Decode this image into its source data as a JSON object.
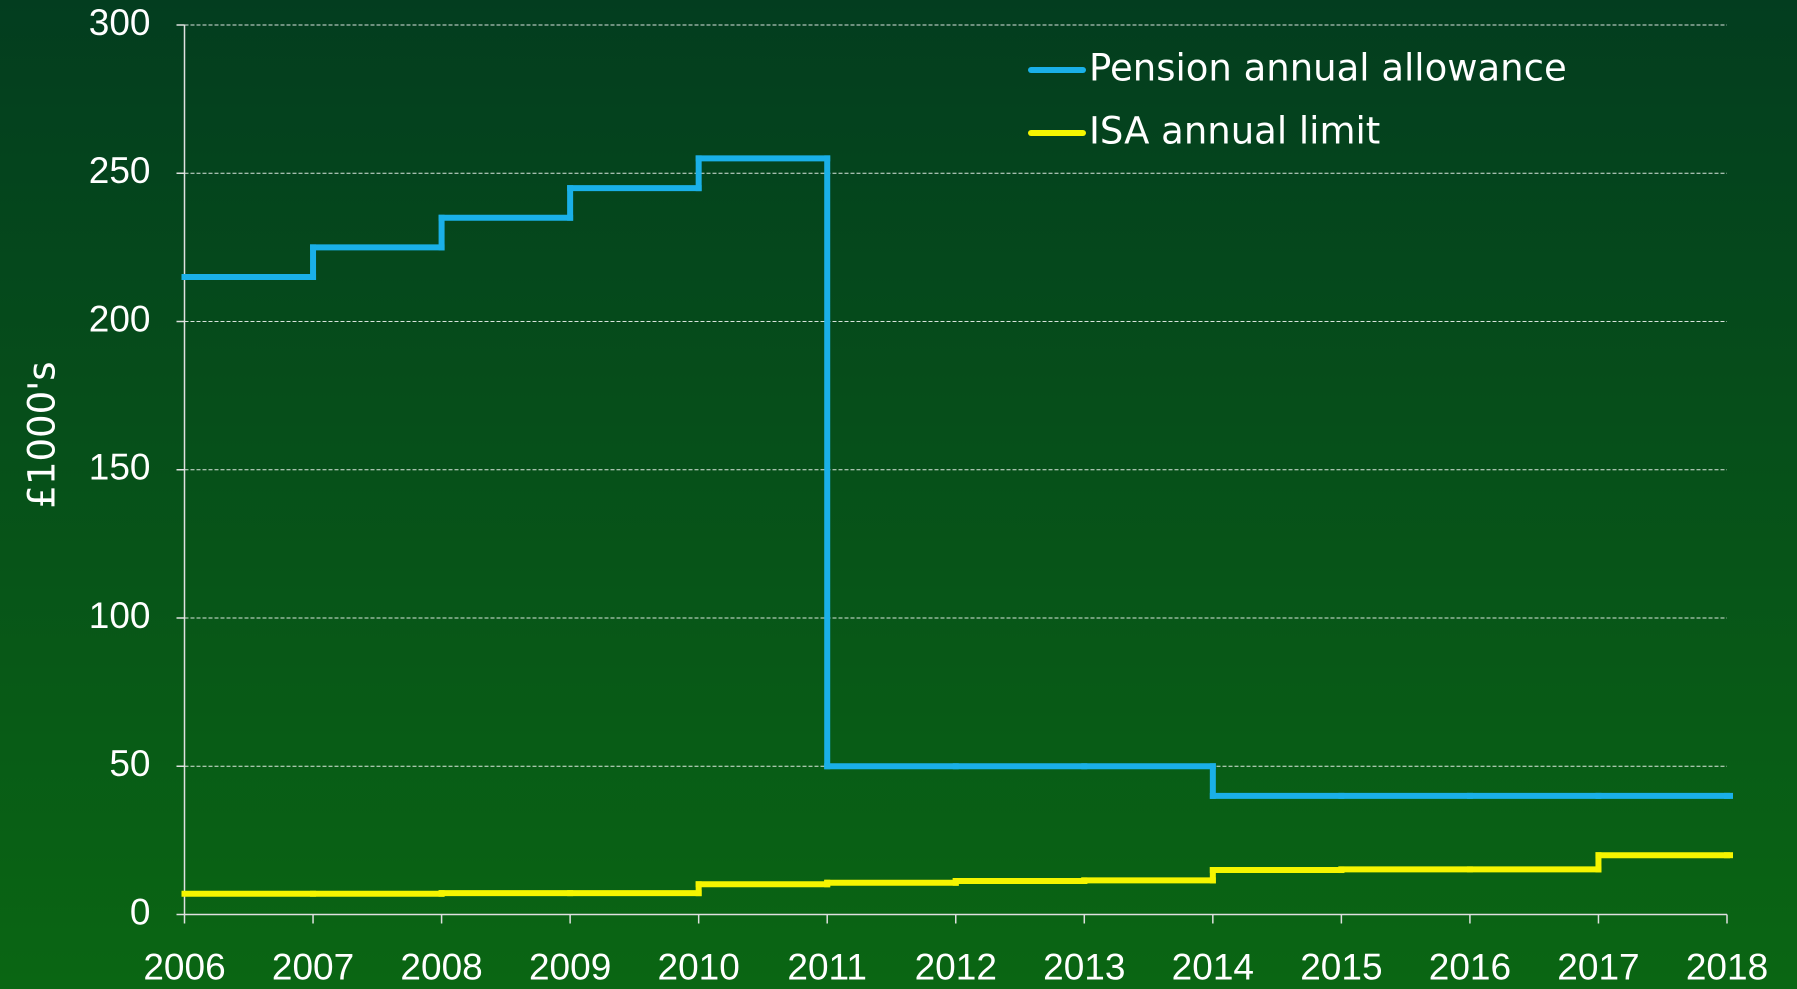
{
  "chart_data": {
    "type": "line",
    "step": "post",
    "y_label": "£1000's",
    "x": [
      2006,
      2007,
      2008,
      2009,
      2010,
      2011,
      2012,
      2013,
      2014,
      2015,
      2016,
      2017,
      2018
    ],
    "series": [
      {
        "name": "Pension annual allowance",
        "color": "#1ab0e8",
        "values": [
          215,
          225,
          235,
          245,
          255,
          50,
          50,
          50,
          40,
          40,
          40,
          40,
          40
        ]
      },
      {
        "name": "ISA annual limit",
        "color": "#f5f500",
        "values": [
          7,
          7,
          7.2,
          7.2,
          10.2,
          10.7,
          11.3,
          11.5,
          15,
          15.2,
          15.2,
          20,
          20
        ]
      }
    ],
    "xlim": [
      2006,
      2018
    ],
    "xticks": [
      2006,
      2007,
      2008,
      2009,
      2010,
      2011,
      2012,
      2013,
      2014,
      2015,
      2016,
      2017,
      2018
    ],
    "ylim": [
      0,
      300
    ],
    "yticks": [
      0,
      50,
      100,
      150,
      200,
      250,
      300
    ],
    "grid": true,
    "legend": "top-right"
  }
}
